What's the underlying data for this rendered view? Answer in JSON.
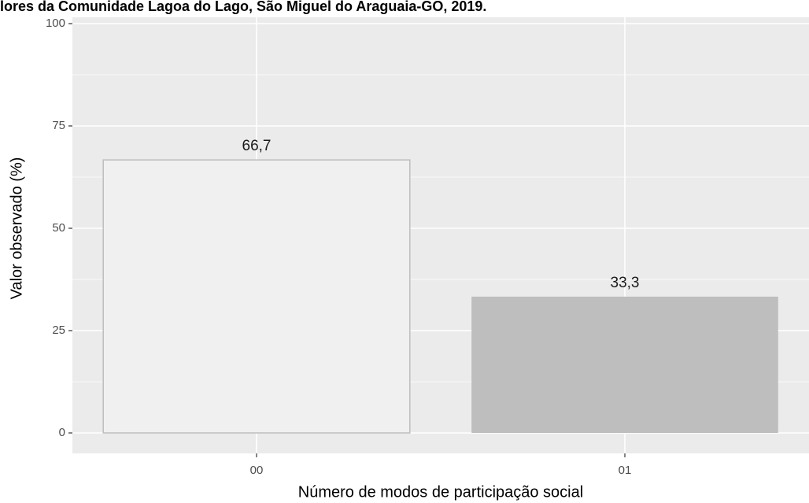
{
  "chart_data": {
    "type": "bar",
    "title": "lores da Comunidade Lagoa do Lago, São Miguel do Araguaia-GO, 2019.",
    "x_label": "Número de modos de participação social",
    "y_label": "Valor observado (%)",
    "categories": [
      "00",
      "01"
    ],
    "values": [
      66.7,
      33.3
    ],
    "value_labels": [
      "66,7",
      "33,3"
    ],
    "colors": [
      "#f0f0f0",
      "#bebebe"
    ],
    "ylim": [
      -5,
      105
    ],
    "yticks": [
      0,
      25,
      50,
      75,
      100
    ],
    "minor_yticks": [
      12.5,
      37.5,
      62.5,
      87.5
    ],
    "grid": true
  }
}
